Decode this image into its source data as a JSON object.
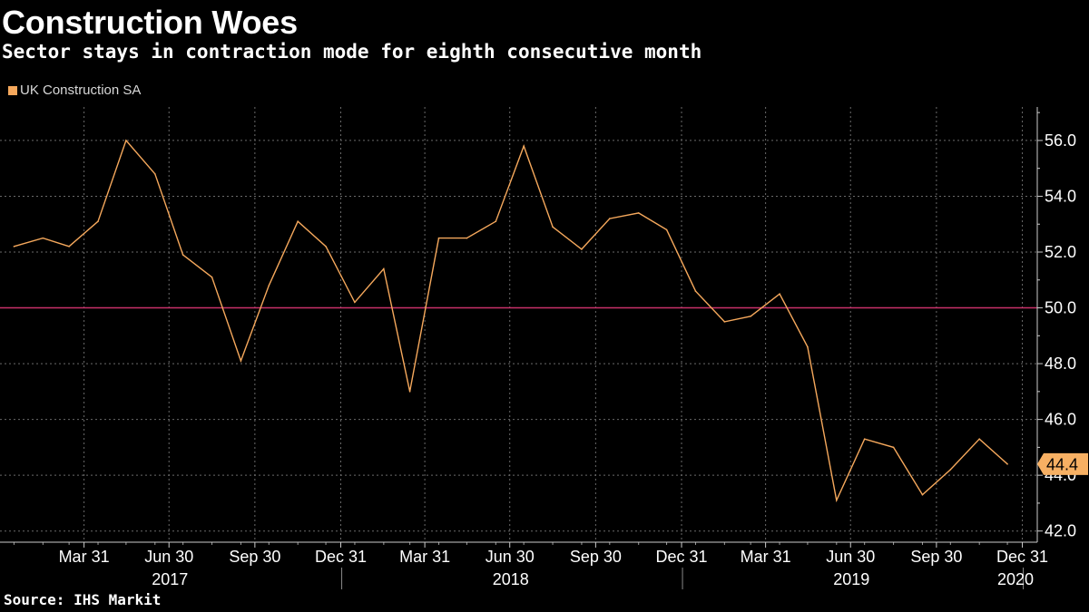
{
  "header": {
    "title": "Construction Woes",
    "subtitle": "Sector stays in contraction mode for eighth consecutive month"
  },
  "footer": {
    "source": "Source: IHS Markit"
  },
  "colors": {
    "background": "#000000",
    "line": "#f5a85c",
    "reference": "#c8306a",
    "grid": "#6a6a6a",
    "last_label_bg": "#f7b063"
  },
  "chart_data": {
    "type": "line",
    "series": [
      {
        "name": "UK Construction SA",
        "x": [
          "2017-01",
          "2017-02",
          "2017-03",
          "2017-04",
          "2017-05",
          "2017-06",
          "2017-07",
          "2017-08",
          "2017-09",
          "2017-10",
          "2017-11",
          "2017-12",
          "2018-01",
          "2018-02",
          "2018-03",
          "2018-04",
          "2018-05",
          "2018-06",
          "2018-07",
          "2018-08",
          "2018-09",
          "2018-10",
          "2018-11",
          "2018-12",
          "2019-01",
          "2019-02",
          "2019-03",
          "2019-04",
          "2019-05",
          "2019-06",
          "2019-07",
          "2019-08",
          "2019-09",
          "2019-10",
          "2019-11",
          "2019-12"
        ],
        "values": [
          52.2,
          52.5,
          52.2,
          53.1,
          56.0,
          54.8,
          51.9,
          51.1,
          48.1,
          50.8,
          53.1,
          52.2,
          50.2,
          51.4,
          47.0,
          52.5,
          52.5,
          53.1,
          55.8,
          52.9,
          52.1,
          53.2,
          53.4,
          52.8,
          50.6,
          49.5,
          49.7,
          50.5,
          48.6,
          43.1,
          45.3,
          45.0,
          43.3,
          44.2,
          45.3,
          44.4
        ]
      }
    ],
    "reference_line": 50.0,
    "last_value_label": "44.4",
    "ylim": [
      41.6,
      57.2
    ],
    "y_ticks": [
      42,
      44,
      46,
      48,
      50,
      52,
      54,
      56
    ],
    "y_tick_labels": [
      "42.0",
      "44.0",
      "46.0",
      "48.0",
      "50.0",
      "52.0",
      "54.0",
      "56.0"
    ],
    "x_range": [
      "2016-12-31",
      "2020-01-16"
    ],
    "x_ticks": [
      {
        "date": "2017-03-31",
        "label": "Mar 31"
      },
      {
        "date": "2017-06-30",
        "label": "Jun 30"
      },
      {
        "date": "2017-09-30",
        "label": "Sep 30"
      },
      {
        "date": "2017-12-31",
        "label": "Dec 31"
      },
      {
        "date": "2018-03-31",
        "label": "Mar 31"
      },
      {
        "date": "2018-06-30",
        "label": "Jun 30"
      },
      {
        "date": "2018-09-30",
        "label": "Sep 30"
      },
      {
        "date": "2018-12-31",
        "label": "Dec 31"
      },
      {
        "date": "2019-03-31",
        "label": "Mar 31"
      },
      {
        "date": "2019-06-30",
        "label": "Jun 30"
      },
      {
        "date": "2019-09-30",
        "label": "Sep 30"
      },
      {
        "date": "2019-12-31",
        "label": "Dec 31"
      }
    ],
    "year_labels": [
      {
        "label": "2017",
        "center": "2017-07-01"
      },
      {
        "label": "2018",
        "center": "2018-07-01"
      },
      {
        "label": "2019",
        "center": "2019-07-01"
      },
      {
        "label": "2020",
        "center": "2020-01-16"
      }
    ],
    "year_separators": [
      "2018-01-01",
      "2019-01-01",
      "2020-01-01"
    ],
    "grid": true,
    "legend_position": "top-left",
    "y_axis_position": "right"
  }
}
